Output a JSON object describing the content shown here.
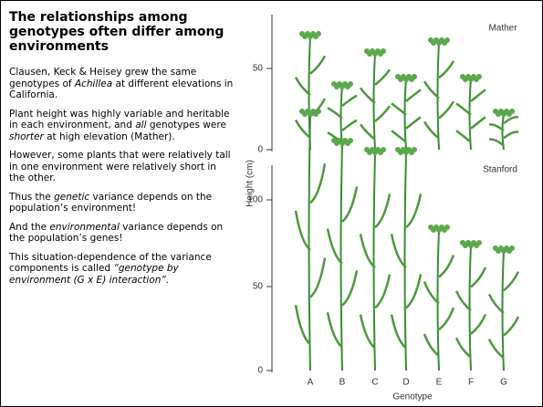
{
  "slide": {
    "title": "The relationships among genotypes often differ among environments",
    "paragraphs": [
      {
        "segments": [
          {
            "text": "Clausen, Keck & Heisey grew the same genotypes of "
          },
          {
            "text": "Achillea",
            "em": true
          },
          {
            "text": " at different elevations in California."
          }
        ]
      },
      {
        "segments": [
          {
            "text": "Plant height was highly variable and heritable in each environment, and "
          },
          {
            "text": "all",
            "em": true
          },
          {
            "text": " genotypes were "
          },
          {
            "text": "shorter",
            "em": true
          },
          {
            "text": " at high elevation (Mather)."
          }
        ]
      },
      {
        "segments": [
          {
            "text": "However, some plants that were relatively tall in one environment were relatively short in the other."
          }
        ]
      },
      {
        "segments": [
          {
            "text": "Thus the "
          },
          {
            "text": "genetic",
            "em": true
          },
          {
            "text": " variance depends on the population’s environment!"
          }
        ]
      },
      {
        "segments": [
          {
            "text": "And the "
          },
          {
            "text": "environmental",
            "em": true
          },
          {
            "text": " variance depends on the population’s genes!"
          }
        ]
      },
      {
        "segments": [
          {
            "text": "This situation-dependence of the variance components is called "
          },
          {
            "text": "“genotype by environment (G x E) interaction”.",
            "em": true
          }
        ]
      }
    ],
    "figure": {
      "y_label": "Height (cm)",
      "x_label": "Genotype",
      "panels": [
        {
          "label": "Mather",
          "ticks": [
            "50",
            "0"
          ]
        },
        {
          "label": "Stanford",
          "ticks": [
            "100",
            "50",
            "0"
          ]
        }
      ],
      "genotypes": [
        "A",
        "B",
        "C",
        "D",
        "E",
        "F",
        "G"
      ]
    }
  }
}
